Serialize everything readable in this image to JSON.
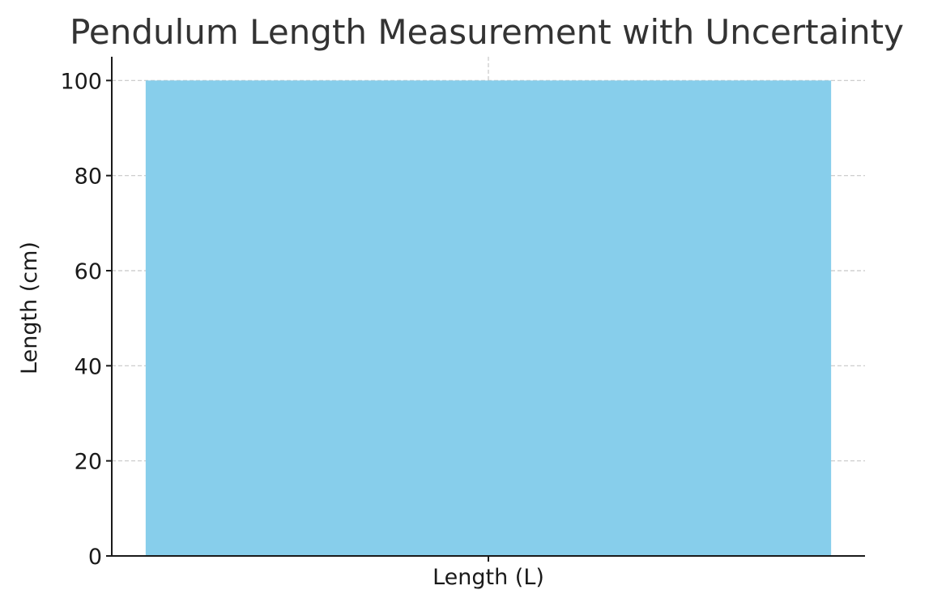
{
  "chart_data": {
    "type": "bar",
    "title": "Pendulum Length Measurement with Uncertainty",
    "xlabel": "",
    "ylabel": "Length (cm)",
    "categories": [
      "Length (L)"
    ],
    "values": [
      100
    ],
    "ylim": [
      0,
      105
    ],
    "yticks": [
      0,
      20,
      40,
      60,
      80,
      100
    ],
    "grid": true,
    "bar_color": "#87CEEB"
  }
}
